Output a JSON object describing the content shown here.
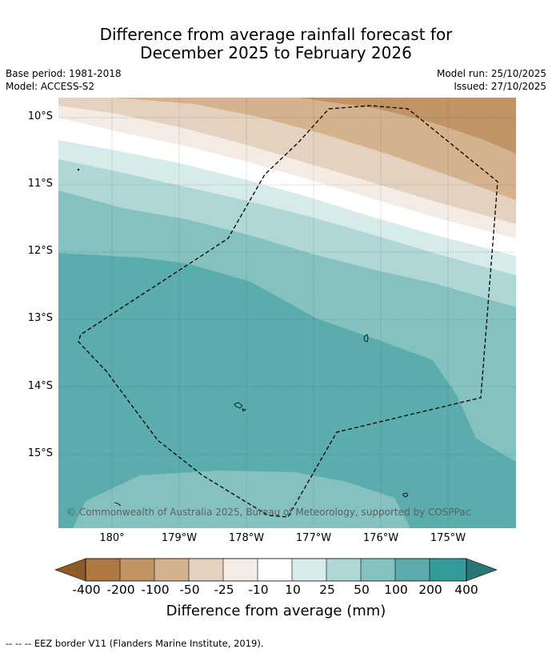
{
  "title": {
    "line1": "Difference from average rainfall forecast for",
    "line2": "December 2025 to February 2026"
  },
  "meta": {
    "base_period": "Base period: 1981-2018",
    "model": "Model: ACCESS-S2",
    "model_run": "Model run: 25/10/2025",
    "issued": "Issued: 27/10/2025"
  },
  "map": {
    "lat_labels": [
      "10°S",
      "11°S",
      "12°S",
      "13°S",
      "14°S",
      "15°S"
    ],
    "lon_labels": [
      "180°",
      "179°W",
      "178°W",
      "177°W",
      "176°W",
      "175°W"
    ],
    "copyright": "© Commonwealth of Australia 2025, Bureau of Meteorology, supported by COSPPac"
  },
  "colorbar": {
    "title": "Difference from average (mm)",
    "ticks": [
      "-400",
      "-200",
      "-100",
      "-50",
      "-25",
      "-10",
      "10",
      "25",
      "50",
      "100",
      "200",
      "400"
    ],
    "colors": [
      "#8e5a28",
      "#ad7842",
      "#c19466",
      "#d4b28e",
      "#e5d1bf",
      "#f4ebe5",
      "#ffffff",
      "#d6ebea",
      "#aed7d6",
      "#85c1bf",
      "#5bacac",
      "#339c9a",
      "#2a7676"
    ]
  },
  "legend": {
    "text": "--  --  -- EEZ border V11 (Flanders Marine Institute, 2019)."
  }
}
